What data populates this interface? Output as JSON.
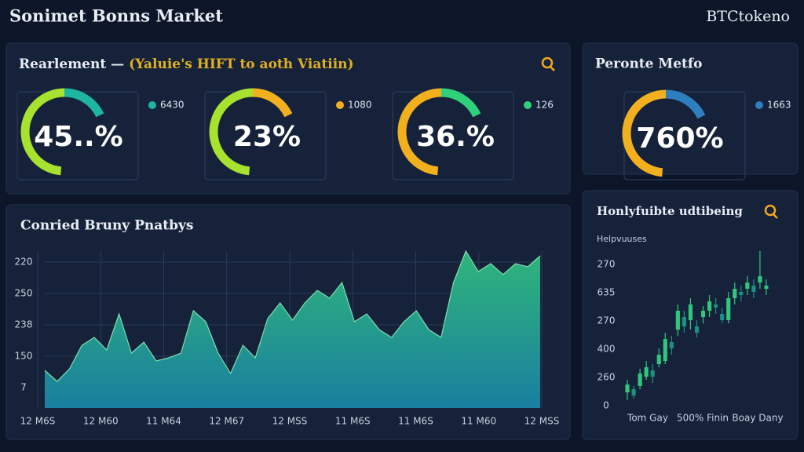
{
  "header": {
    "title": "Sonimet Bonns Market",
    "brand": "BTCtokeno"
  },
  "gauges_panel": {
    "title": "Rearlement —",
    "subtitle": "(Yaluie's HIFT to aoth Viatiin)",
    "gauges": [
      {
        "value": 45,
        "value_label": "45..%",
        "legend": "6430",
        "color": "#1fb5a3"
      },
      {
        "value": 23,
        "value_label": "23%",
        "legend": "1080",
        "color": "#f2b01e"
      },
      {
        "value": 36,
        "value_label": "36.%",
        "legend": "126",
        "color": "#2fd07a"
      }
    ]
  },
  "side_gauge_panel": {
    "title": "Peronte Metfo",
    "gauge": {
      "value": 760,
      "value_label": "760%",
      "legend": "1663",
      "color": "#2f7fc0"
    }
  },
  "area_chart": {
    "type": "area",
    "title": "Conried Bruny Pnatbys",
    "ylim": [
      0,
      100
    ],
    "y_labels": [
      "220",
      "250",
      "238",
      "150",
      "7"
    ],
    "x_labels": [
      "12 M6S",
      "12 M60",
      "11 M64",
      "12 M67",
      "12 MSS",
      "11 M6S",
      "11 M6S",
      "11 M60",
      "12 MSS"
    ],
    "values": [
      24,
      17,
      25,
      40,
      45,
      37,
      60,
      35,
      42,
      30,
      32,
      35,
      62,
      55,
      35,
      22,
      40,
      32,
      57,
      67,
      56,
      67,
      75,
      70,
      80,
      55,
      60,
      50,
      45,
      55,
      62,
      50,
      45,
      80,
      100,
      87,
      92,
      85,
      92,
      90,
      97
    ],
    "color_top": "#2fb57a",
    "color_bottom": "#1a7fa0"
  },
  "candle_chart": {
    "type": "candlestick",
    "title": "Honlyfuibte udtibeing",
    "axis_title": "Helpvuuses",
    "ylim": [
      0,
      100
    ],
    "y_labels": [
      "270",
      "635",
      "270",
      "400",
      "260",
      "0"
    ],
    "x_labels": [
      "Tom Gay",
      "500% Finin",
      "Boay Dany"
    ],
    "up_color": "#2fc77c",
    "down_color": "#1c8f86",
    "open": [
      10,
      12,
      14,
      20,
      24,
      28,
      30,
      42,
      50,
      58,
      56,
      52,
      58,
      62,
      66,
      60,
      56,
      70,
      74,
      76,
      78,
      80,
      76
    ],
    "close": [
      15,
      8,
      22,
      26,
      20,
      34,
      44,
      38,
      62,
      52,
      66,
      48,
      62,
      68,
      64,
      56,
      70,
      76,
      72,
      80,
      74,
      84,
      78
    ],
    "high": [
      18,
      14,
      25,
      30,
      28,
      38,
      48,
      46,
      66,
      62,
      70,
      56,
      65,
      72,
      70,
      64,
      74,
      80,
      78,
      84,
      82,
      100,
      82
    ],
    "low": [
      5,
      6,
      12,
      18,
      16,
      26,
      28,
      34,
      46,
      48,
      50,
      45,
      54,
      58,
      60,
      54,
      54,
      66,
      68,
      72,
      70,
      76,
      72
    ]
  }
}
